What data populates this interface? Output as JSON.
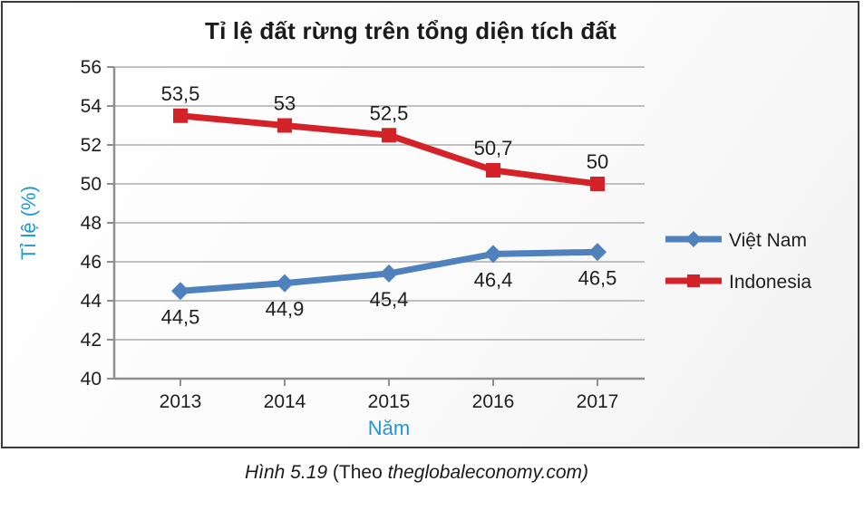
{
  "figure": {
    "caption_parts": [
      {
        "text": "Hình 5.19",
        "italic": true
      },
      {
        "text": " (Theo ",
        "italic": false
      },
      {
        "text": "theglobaleconomy.com)",
        "italic": true
      }
    ]
  },
  "chart_data": {
    "type": "line",
    "title": "Tỉ lệ đất rừng trên tổng diện tích đất",
    "xlabel": "Năm",
    "ylabel": "Tỉ lệ (%)",
    "categories": [
      "2013",
      "2014",
      "2015",
      "2016",
      "2017"
    ],
    "ylim": [
      40,
      56
    ],
    "ytick_step": 2,
    "grid": true,
    "legend_position": "right",
    "series": [
      {
        "name": "Việt Nam",
        "color": "#4F81BD",
        "marker": "diamond",
        "label_position": "below",
        "values": [
          44.5,
          44.9,
          45.4,
          46.4,
          46.5
        ],
        "labels": [
          "44,5",
          "44,9",
          "45,4",
          "46,4",
          "46,5"
        ]
      },
      {
        "name": "Indonesia",
        "color": "#D42328",
        "marker": "square",
        "label_position": "above",
        "values": [
          53.5,
          53,
          52.5,
          50.7,
          50
        ],
        "labels": [
          "53,5",
          "53",
          "52,5",
          "50,7",
          "50"
        ]
      }
    ],
    "colors": {
      "axis_label": "#2396D4",
      "grid": "#ADADAD",
      "axis": "#8F8F8F",
      "text": "#1E1E1E"
    }
  }
}
